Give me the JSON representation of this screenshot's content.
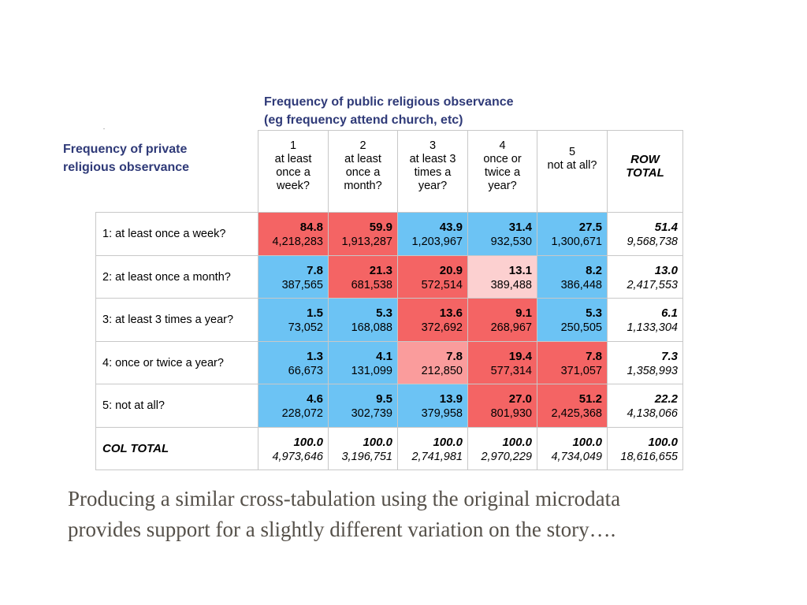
{
  "column_heading": {
    "line1": "Frequency of public religious observance",
    "line2": "(eg frequency attend church, etc)"
  },
  "row_heading": {
    "line1": "Frequency of private",
    "line2": "religious observance"
  },
  "table": {
    "columns": [
      {
        "label": "1\nat least\nonce a\nweek?"
      },
      {
        "label": "2\nat least\nonce a\nmonth?"
      },
      {
        "label": "3\nat least 3\ntimes a\nyear?"
      },
      {
        "label": "4\nonce or\ntwice a\nyear?"
      },
      {
        "label": "5\nnot at all?"
      },
      {
        "label": "ROW\nTOTAL"
      }
    ],
    "rows": [
      {
        "label": "1: at least once a week?",
        "cells": [
          {
            "pct": "84.8",
            "count": "4,218,283",
            "color": "#f46464"
          },
          {
            "pct": "59.9",
            "count": "1,913,287",
            "color": "#f46464"
          },
          {
            "pct": "43.9",
            "count": "1,203,967",
            "color": "#6cc3f4"
          },
          {
            "pct": "31.4",
            "count": "932,530",
            "color": "#6cc3f4"
          },
          {
            "pct": "27.5",
            "count": "1,300,671",
            "color": "#6cc3f4"
          },
          {
            "pct": "51.4",
            "count": "9,568,738",
            "color": "#ffffff"
          }
        ]
      },
      {
        "label": "2: at least once a month?",
        "cells": [
          {
            "pct": "7.8",
            "count": "387,565",
            "color": "#6cc3f4"
          },
          {
            "pct": "21.3",
            "count": "681,538",
            "color": "#f46464"
          },
          {
            "pct": "20.9",
            "count": "572,514",
            "color": "#f46464"
          },
          {
            "pct": "13.1",
            "count": "389,488",
            "color": "#fcd0d0"
          },
          {
            "pct": "8.2",
            "count": "386,448",
            "color": "#6cc3f4"
          },
          {
            "pct": "13.0",
            "count": "2,417,553",
            "color": "#ffffff"
          }
        ]
      },
      {
        "label": "3: at least 3 times a year?",
        "cells": [
          {
            "pct": "1.5",
            "count": "73,052",
            "color": "#6cc3f4"
          },
          {
            "pct": "5.3",
            "count": "168,088",
            "color": "#6cc3f4"
          },
          {
            "pct": "13.6",
            "count": "372,692",
            "color": "#f46464"
          },
          {
            "pct": "9.1",
            "count": "268,967",
            "color": "#f46464"
          },
          {
            "pct": "5.3",
            "count": "250,505",
            "color": "#6cc3f4"
          },
          {
            "pct": "6.1",
            "count": "1,133,304",
            "color": "#ffffff"
          }
        ]
      },
      {
        "label": "4: once or twice a year?",
        "cells": [
          {
            "pct": "1.3",
            "count": "66,673",
            "color": "#6cc3f4"
          },
          {
            "pct": "4.1",
            "count": "131,099",
            "color": "#6cc3f4"
          },
          {
            "pct": "7.8",
            "count": "212,850",
            "color": "#fa9c9c"
          },
          {
            "pct": "19.4",
            "count": "577,314",
            "color": "#f46464"
          },
          {
            "pct": "7.8",
            "count": "371,057",
            "color": "#f46464"
          },
          {
            "pct": "7.3",
            "count": "1,358,993",
            "color": "#ffffff"
          }
        ]
      },
      {
        "label": "5: not at all?",
        "cells": [
          {
            "pct": "4.6",
            "count": "228,072",
            "color": "#6cc3f4"
          },
          {
            "pct": "9.5",
            "count": "302,739",
            "color": "#6cc3f4"
          },
          {
            "pct": "13.9",
            "count": "379,958",
            "color": "#6cc3f4"
          },
          {
            "pct": "27.0",
            "count": "801,930",
            "color": "#f46464"
          },
          {
            "pct": "51.2",
            "count": "2,425,368",
            "color": "#f46464"
          },
          {
            "pct": "22.2",
            "count": "4,138,066",
            "color": "#ffffff"
          }
        ]
      }
    ],
    "col_total": {
      "label": "COL TOTAL",
      "cells": [
        {
          "pct": "100.0",
          "count": "4,973,646"
        },
        {
          "pct": "100.0",
          "count": "3,196,751"
        },
        {
          "pct": "100.0",
          "count": "2,741,981"
        },
        {
          "pct": "100.0",
          "count": "2,970,229"
        },
        {
          "pct": "100.0",
          "count": "4,734,049"
        },
        {
          "pct": "100.0",
          "count": "18,616,655"
        }
      ]
    }
  },
  "caption": {
    "line1": "Producing a similar cross-tabulation using the original microdata",
    "line2": "provides support for a slightly different variation on the story…."
  }
}
